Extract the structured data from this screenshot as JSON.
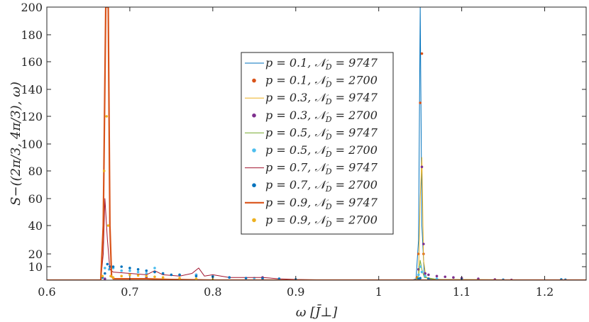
{
  "chart_data": {
    "type": "line",
    "title": "",
    "xlabel": "ω [J̄⊥]",
    "ylabel": "S−((2π/3, 4π/3), ω)",
    "xlim": [
      0.6,
      1.25
    ],
    "ylim": [
      0,
      200
    ],
    "xticks": [
      "0.6",
      "0.7",
      "0.8",
      "0.9",
      "1",
      "1.1",
      "1.2"
    ],
    "xtick_values": [
      0.6,
      0.7,
      0.8,
      0.9,
      1.0,
      1.1,
      1.2
    ],
    "yticks": [
      "10",
      "20",
      "40",
      "60",
      "80",
      "100",
      "120",
      "140",
      "160",
      "180",
      "200"
    ],
    "ytick_values": [
      10,
      20,
      40,
      60,
      80,
      100,
      120,
      140,
      160,
      180,
      200
    ],
    "grid": false,
    "legend_position": "center",
    "series": [
      {
        "name": "p = 0.1, N_D = 9747",
        "style": "line",
        "color": "#0072BD",
        "points": [
          [
            0.6,
            0
          ],
          [
            1.04,
            0
          ],
          [
            1.045,
            1
          ],
          [
            1.048,
            30
          ],
          [
            1.05,
            200
          ],
          [
            1.052,
            40
          ],
          [
            1.055,
            3
          ],
          [
            1.06,
            1
          ],
          [
            1.08,
            0.3
          ],
          [
            1.25,
            0
          ]
        ]
      },
      {
        "name": "p = 0.1, N_D = 2700",
        "style": "dots",
        "color": "#D95319",
        "points": [
          [
            1.046,
            2
          ],
          [
            1.048,
            20
          ],
          [
            1.05,
            130
          ],
          [
            1.052,
            166
          ],
          [
            1.054,
            20
          ],
          [
            1.056,
            3
          ],
          [
            1.06,
            1
          ],
          [
            1.07,
            0.5
          ]
        ]
      },
      {
        "name": "p = 0.3, N_D = 9747",
        "style": "line",
        "color": "#EDB120",
        "points": [
          [
            0.6,
            0
          ],
          [
            1.045,
            0
          ],
          [
            1.048,
            5
          ],
          [
            1.05,
            60
          ],
          [
            1.052,
            90
          ],
          [
            1.054,
            15
          ],
          [
            1.057,
            2
          ],
          [
            1.07,
            0.5
          ],
          [
            1.25,
            0
          ]
        ]
      },
      {
        "name": "p = 0.3, N_D = 2700",
        "style": "dots",
        "color": "#7E2F8E",
        "points": [
          [
            0.67,
            1
          ],
          [
            0.72,
            2
          ],
          [
            0.78,
            4
          ],
          [
            0.86,
            2
          ],
          [
            1.048,
            8
          ],
          [
            1.052,
            83
          ],
          [
            1.054,
            27
          ],
          [
            1.056,
            5
          ],
          [
            1.06,
            4
          ],
          [
            1.07,
            3
          ],
          [
            1.08,
            2.5
          ],
          [
            1.09,
            2
          ],
          [
            1.1,
            1.5
          ],
          [
            1.12,
            1
          ],
          [
            1.14,
            0.5
          ],
          [
            1.16,
            0.2
          ]
        ]
      },
      {
        "name": "p = 0.5, N_D = 9747",
        "style": "line",
        "color": "#77AC30",
        "points": [
          [
            0.6,
            0
          ],
          [
            1.045,
            0
          ],
          [
            1.048,
            3
          ],
          [
            1.05,
            15
          ],
          [
            1.052,
            8
          ],
          [
            1.055,
            2
          ],
          [
            1.07,
            0.5
          ],
          [
            1.25,
            0
          ]
        ]
      },
      {
        "name": "p = 0.5, N_D = 2700",
        "style": "dots",
        "color": "#4DBEEE",
        "points": [
          [
            0.667,
            2
          ],
          [
            0.67,
            9
          ],
          [
            0.675,
            8
          ],
          [
            0.68,
            9
          ],
          [
            0.69,
            7
          ],
          [
            0.7,
            7
          ],
          [
            0.71,
            6
          ],
          [
            0.72,
            5
          ],
          [
            0.73,
            9
          ],
          [
            0.74,
            5
          ],
          [
            0.76,
            4
          ],
          [
            0.78,
            4
          ],
          [
            0.8,
            3
          ],
          [
            0.82,
            2
          ],
          [
            0.85,
            1.5
          ],
          [
            0.88,
            1
          ],
          [
            0.9,
            0.5
          ],
          [
            1.048,
            4
          ],
          [
            1.05,
            10
          ],
          [
            1.052,
            6
          ],
          [
            1.056,
            3
          ],
          [
            1.07,
            1
          ]
        ]
      },
      {
        "name": "p = 0.7, N_D = 9747",
        "style": "line",
        "color": "#A2142F",
        "points": [
          [
            0.6,
            0
          ],
          [
            0.665,
            0
          ],
          [
            0.668,
            20
          ],
          [
            0.67,
            60
          ],
          [
            0.673,
            30
          ],
          [
            0.676,
            8
          ],
          [
            0.68,
            6
          ],
          [
            0.7,
            5
          ],
          [
            0.72,
            4
          ],
          [
            0.73,
            7
          ],
          [
            0.74,
            4
          ],
          [
            0.76,
            3
          ],
          [
            0.775,
            5
          ],
          [
            0.783,
            9
          ],
          [
            0.79,
            3
          ],
          [
            0.8,
            4
          ],
          [
            0.82,
            2
          ],
          [
            0.86,
            2
          ],
          [
            0.88,
            1
          ],
          [
            0.9,
            0.5
          ],
          [
            0.95,
            0
          ],
          [
            1.25,
            0
          ]
        ]
      },
      {
        "name": "p = 0.7, N_D = 2700",
        "style": "dots",
        "color": "#0072BD",
        "points": [
          [
            0.667,
            2
          ],
          [
            0.67,
            5
          ],
          [
            0.673,
            12
          ],
          [
            0.676,
            10
          ],
          [
            0.68,
            10
          ],
          [
            0.69,
            10
          ],
          [
            0.7,
            9
          ],
          [
            0.71,
            8
          ],
          [
            0.72,
            7
          ],
          [
            0.73,
            6
          ],
          [
            0.74,
            5
          ],
          [
            0.75,
            4
          ],
          [
            0.76,
            4
          ],
          [
            0.78,
            3
          ],
          [
            0.8,
            2.5
          ],
          [
            0.82,
            2
          ],
          [
            0.84,
            1.5
          ],
          [
            0.86,
            1.2
          ],
          [
            0.88,
            1
          ],
          [
            0.9,
            0.5
          ],
          [
            1.048,
            1
          ],
          [
            1.05,
            1.5
          ],
          [
            1.06,
            1
          ],
          [
            1.1,
            0.5
          ],
          [
            1.15,
            0.3
          ],
          [
            1.22,
            0.5
          ],
          [
            1.225,
            0.3
          ]
        ]
      },
      {
        "name": "p = 0.9, N_D = 9747",
        "style": "line",
        "color": "#D95319",
        "points": [
          [
            0.6,
            0
          ],
          [
            0.665,
            0
          ],
          [
            0.668,
            40
          ],
          [
            0.671,
            200
          ],
          [
            0.674,
            200
          ],
          [
            0.676,
            40
          ],
          [
            0.678,
            3
          ],
          [
            0.68,
            1
          ],
          [
            0.7,
            1
          ],
          [
            0.72,
            1
          ],
          [
            0.75,
            0.5
          ],
          [
            0.8,
            0
          ],
          [
            1.25,
            0
          ]
        ]
      },
      {
        "name": "p = 0.9, N_D = 2700",
        "style": "dots",
        "color": "#EDB120",
        "points": [
          [
            0.667,
            3
          ],
          [
            0.669,
            80
          ],
          [
            0.672,
            120
          ],
          [
            0.674,
            40
          ],
          [
            0.677,
            3
          ],
          [
            0.68,
            2
          ],
          [
            0.69,
            3
          ],
          [
            0.7,
            4
          ],
          [
            0.71,
            3.5
          ],
          [
            0.72,
            3
          ],
          [
            0.73,
            2.5
          ],
          [
            0.74,
            2
          ],
          [
            0.76,
            1.5
          ],
          [
            0.78,
            1
          ],
          [
            0.8,
            0.5
          ]
        ]
      }
    ],
    "legend": [
      {
        "p": "p = 0.1,",
        "nd": "𝒩",
        "sub": "D",
        "val": "= 9747"
      },
      {
        "p": "p = 0.1,",
        "nd": "𝒩",
        "sub": "D",
        "val": "= 2700"
      },
      {
        "p": "p = 0.3,",
        "nd": "𝒩",
        "sub": "D",
        "val": "= 9747"
      },
      {
        "p": "p = 0.3,",
        "nd": "𝒩",
        "sub": "D",
        "val": "= 2700"
      },
      {
        "p": "p = 0.5,",
        "nd": "𝒩",
        "sub": "D",
        "val": "= 9747"
      },
      {
        "p": "p = 0.5,",
        "nd": "𝒩",
        "sub": "D",
        "val": "= 2700"
      },
      {
        "p": "p = 0.7,",
        "nd": "𝒩",
        "sub": "D",
        "val": "= 9747"
      },
      {
        "p": "p = 0.7,",
        "nd": "𝒩",
        "sub": "D",
        "val": "= 2700"
      },
      {
        "p": "p = 0.9,",
        "nd": "𝒩",
        "sub": "D",
        "val": "= 9747"
      },
      {
        "p": "p = 0.9,",
        "nd": "𝒩",
        "sub": "D",
        "val": "= 2700"
      }
    ]
  }
}
